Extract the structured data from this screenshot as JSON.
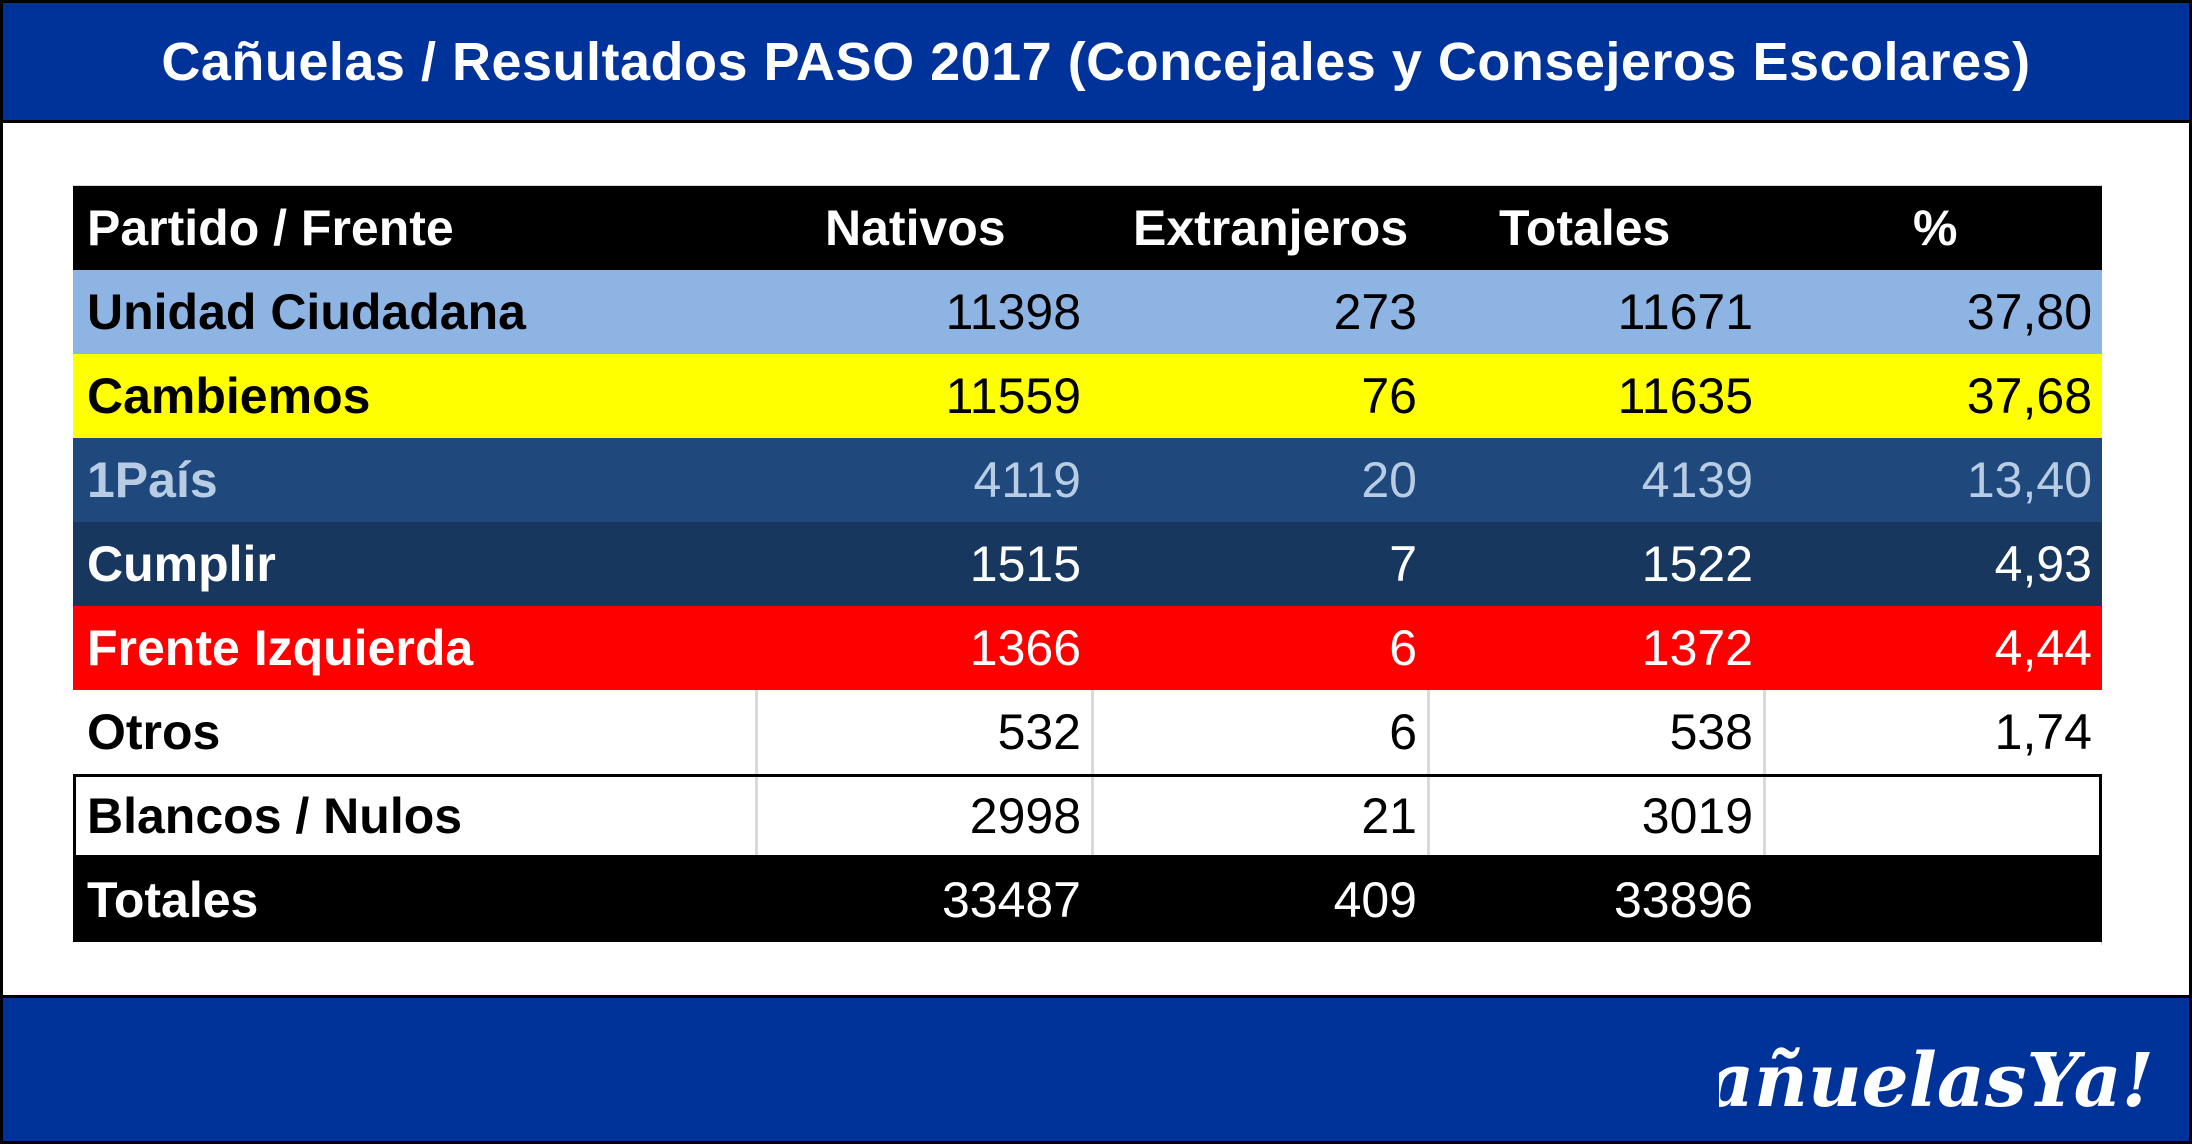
{
  "title": "Cañuelas / Resultados PASO 2017 (Concejales y Consejeros Escolares)",
  "logo_text": "CañuelasYa!",
  "colors": {
    "bar": "#003399",
    "unidad_ciudadana": "#8eb4e3",
    "cambiemos": "#ffff00",
    "un_pais": "#1f497d",
    "cumplir": "#17375e",
    "frente_izquierda": "#ff0000",
    "header": "#000000"
  },
  "chart_data": {
    "type": "table",
    "columns": [
      "Partido / Frente",
      "Nativos",
      "Extranjeros",
      "Totales",
      "%"
    ],
    "rows": [
      {
        "party": "Unidad Ciudadana",
        "nativos": "11398",
        "extranjeros": "273",
        "totales": "11671",
        "pct": "37,80"
      },
      {
        "party": "Cambiemos",
        "nativos": "11559",
        "extranjeros": "76",
        "totales": "11635",
        "pct": "37,68"
      },
      {
        "party": "1País",
        "nativos": "4119",
        "extranjeros": "20",
        "totales": "4139",
        "pct": "13,40"
      },
      {
        "party": "Cumplir",
        "nativos": "1515",
        "extranjeros": "7",
        "totales": "1522",
        "pct": "4,93"
      },
      {
        "party": "Frente Izquierda",
        "nativos": "1366",
        "extranjeros": "6",
        "totales": "1372",
        "pct": "4,44"
      },
      {
        "party": "Otros",
        "nativos": "532",
        "extranjeros": "6",
        "totales": "538",
        "pct": "1,74"
      },
      {
        "party": "Blancos / Nulos",
        "nativos": "2998",
        "extranjeros": "21",
        "totales": "3019",
        "pct": ""
      },
      {
        "party": "Totales",
        "nativos": "33487",
        "extranjeros": "409",
        "totales": "33896",
        "pct": ""
      }
    ]
  }
}
